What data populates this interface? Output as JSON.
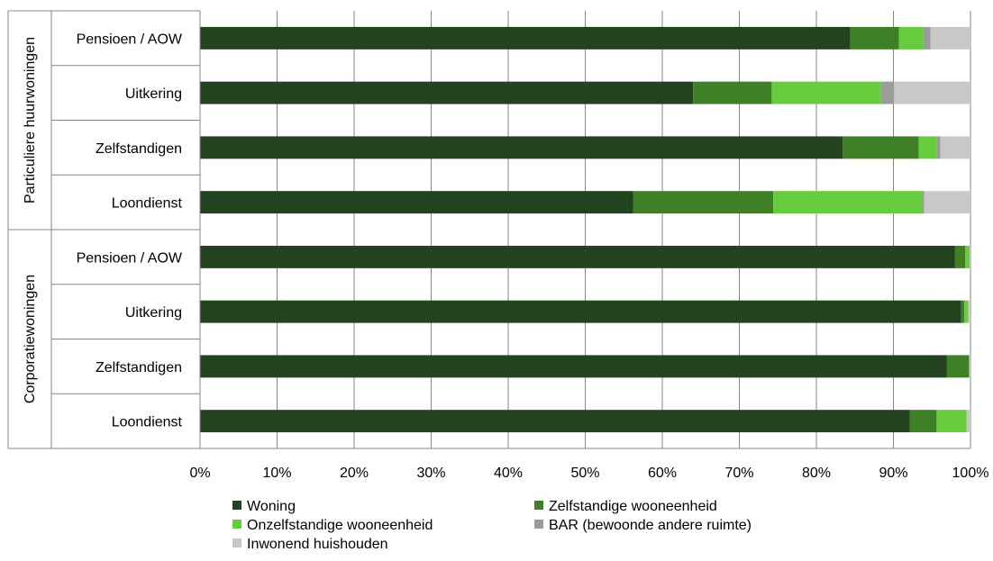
{
  "chart_data": {
    "type": "bar",
    "orientation": "horizontal",
    "stacked": true,
    "groups": [
      {
        "label": "Particuliere huurwoningen",
        "categories": [
          "Pensioen / AOW",
          "Uitkering",
          "Zelfstandigen",
          "Loondienst"
        ]
      },
      {
        "label": "Corporatiewoningen",
        "categories": [
          "Pensioen / AOW",
          "Uitkering",
          "Zelfstandigen",
          "Loondienst"
        ]
      }
    ],
    "series": [
      {
        "name": "Woning",
        "color": "#23421f",
        "values": [
          84.4,
          64.0,
          83.4,
          56.2,
          98.0,
          98.8,
          96.9,
          92.1
        ]
      },
      {
        "name": "Zelfstandige wooneenheid",
        "color": "#3f7f25",
        "values": [
          6.3,
          10.2,
          9.9,
          18.2,
          1.3,
          0.4,
          2.9,
          3.5
        ]
      },
      {
        "name": "Onzelfstandige wooneenheid",
        "color": "#66cc3d",
        "values": [
          3.2,
          14.2,
          2.3,
          19.4,
          0.6,
          0.5,
          0.1,
          3.9
        ]
      },
      {
        "name": "BAR (bewoonde andere ruimte)",
        "color": "#9b9b9b",
        "values": [
          0.9,
          1.7,
          0.5,
          0.2,
          0.0,
          0.0,
          0.0,
          0.0
        ]
      },
      {
        "name": "Inwonend huishouden",
        "color": "#c8c8c8",
        "values": [
          5.2,
          9.9,
          3.9,
          6.0,
          0.1,
          0.3,
          0.1,
          0.5
        ]
      }
    ],
    "xticks": [
      "0%",
      "10%",
      "20%",
      "30%",
      "40%",
      "50%",
      "60%",
      "70%",
      "80%",
      "90%",
      "100%"
    ],
    "xlim": [
      0,
      100
    ],
    "grid": true,
    "legend_position": "bottom"
  }
}
